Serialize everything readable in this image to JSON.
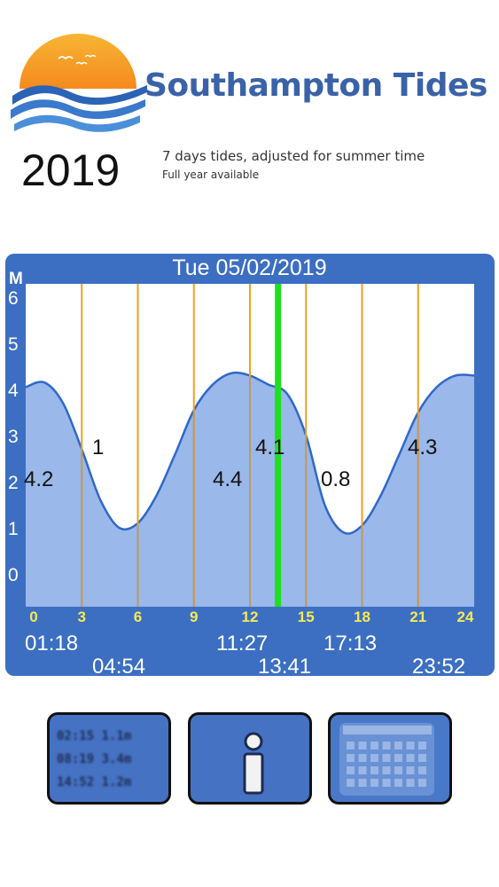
{
  "header": {
    "brand": "Southampton Tides",
    "year": "2019",
    "subtitle": "7 days tides, adjusted for summer time",
    "subtitle2": "Full year available"
  },
  "panel": {
    "date": "Tue 05/02/2019",
    "unit_label": "M",
    "y_ticks": [
      "6",
      "5",
      "4",
      "3",
      "2",
      "1",
      "0"
    ],
    "x_ticks": [
      "0",
      "3",
      "6",
      "9",
      "12",
      "15",
      "18",
      "21",
      "24"
    ],
    "height_labels": [
      "4.2",
      "1",
      "4.4",
      "4.1",
      "0.8",
      "4.3"
    ],
    "tide_times_top": [
      "01:18",
      "11:27",
      "17:13"
    ],
    "tide_times_bottom": [
      "04:54",
      "13:41",
      "23:52"
    ]
  },
  "chart_data": {
    "type": "area",
    "title": "Tue 05/02/2019",
    "ylabel": "M",
    "xlim": [
      0,
      24
    ],
    "ylim": [
      0,
      6
    ],
    "current_time_marker_hours": 13.5,
    "series": [
      {
        "x": [
          0,
          1,
          2,
          3,
          4,
          5,
          6,
          7,
          8,
          9,
          10,
          11,
          12,
          13,
          14,
          15,
          16,
          17,
          18,
          19,
          20,
          21,
          22,
          23,
          24
        ],
        "values": [
          4.05,
          4.15,
          3.7,
          2.7,
          1.6,
          1.0,
          1.1,
          1.7,
          2.6,
          3.55,
          4.1,
          4.35,
          4.3,
          4.1,
          3.9,
          3.0,
          1.5,
          0.9,
          1.05,
          1.7,
          2.6,
          3.5,
          4.05,
          4.3,
          4.3
        ]
      }
    ]
  },
  "buttons": {
    "tides_preview": [
      "02:15  1.1m",
      "08:19  3.4m",
      "14:52  1.2m"
    ],
    "tides_icon": "tide-table-icon",
    "info_icon": "info-icon",
    "calendar_icon": "calendar-icon"
  },
  "colors": {
    "panel": "#3c6fc2",
    "plot_fill": "#9ab8ea",
    "curve": "#3068c8",
    "hour_lines": "#f0a020",
    "now_marker": "#1ee01e",
    "x_tick_labels": "#f5ea55",
    "brand": "#3a62a8"
  }
}
